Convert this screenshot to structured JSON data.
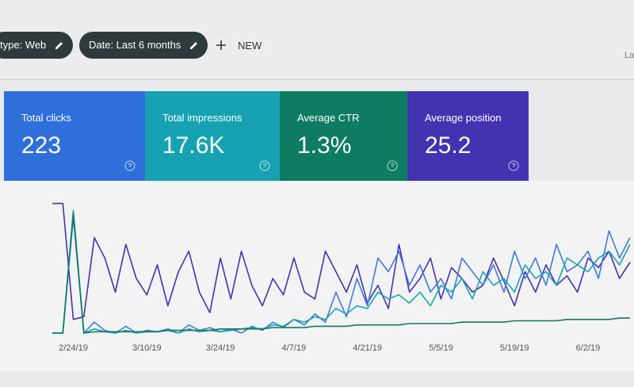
{
  "toolbar": {
    "chips": [
      "type: Web",
      "Date: Last 6 months"
    ],
    "new_button": "NEW",
    "right_text": "La"
  },
  "cards": [
    {
      "label": "Total clicks",
      "value": "223",
      "color": "#2f6fdc"
    },
    {
      "label": "Total impressions",
      "value": "17.6K",
      "color": "#16a2b3"
    },
    {
      "label": "Average CTR",
      "value": "1.3%",
      "color": "#0e7c63"
    },
    {
      "label": "Average position",
      "value": "25.2",
      "color": "#4433b0"
    }
  ],
  "chart_data": {
    "type": "line",
    "categories": [
      null,
      null,
      "2/24/19",
      null,
      null,
      null,
      null,
      null,
      null,
      "3/10/19",
      null,
      null,
      null,
      null,
      null,
      null,
      "3/24/19",
      null,
      null,
      null,
      null,
      null,
      null,
      "4/7/19",
      null,
      null,
      null,
      null,
      null,
      null,
      "4/21/19",
      null,
      null,
      null,
      null,
      null,
      null,
      "5/5/19",
      null,
      null,
      null,
      null,
      null,
      null,
      "5/19/19",
      null,
      null,
      null,
      null,
      null,
      null,
      "6/2/19",
      null,
      null,
      null,
      null
    ],
    "ylim": [
      0,
      100
    ],
    "series": [
      {
        "color": "#4433b0",
        "values": [
          95,
          95,
          10,
          12,
          70,
          55,
          30,
          65,
          40,
          28,
          50,
          20,
          45,
          60,
          30,
          15,
          55,
          25,
          60,
          35,
          20,
          40,
          28,
          55,
          30,
          25,
          60,
          45,
          30,
          50,
          22,
          35,
          18,
          65,
          30,
          40,
          55,
          25,
          48,
          40,
          30,
          35,
          55,
          38,
          20,
          45,
          30,
          50,
          35,
          42,
          30,
          55,
          48,
          60,
          40,
          52
        ]
      },
      {
        "color": "#3d7be0",
        "values": [
          0,
          0,
          85,
          0,
          8,
          2,
          0,
          5,
          0,
          2,
          1,
          3,
          0,
          6,
          2,
          4,
          1,
          3,
          0,
          5,
          2,
          8,
          4,
          10,
          6,
          14,
          8,
          30,
          12,
          40,
          20,
          55,
          45,
          60,
          35,
          50,
          30,
          40,
          25,
          55,
          45,
          35,
          50,
          30,
          60,
          40,
          55,
          35,
          65,
          45,
          50,
          60,
          40,
          75,
          55,
          70
        ]
      },
      {
        "color": "#1aa5b0",
        "values": [
          0,
          0,
          90,
          0,
          3,
          1,
          0,
          2,
          0,
          1,
          1,
          2,
          0,
          3,
          1,
          2,
          1,
          2,
          3,
          4,
          3,
          6,
          5,
          10,
          8,
          12,
          10,
          18,
          14,
          20,
          18,
          30,
          25,
          28,
          22,
          30,
          20,
          35,
          30,
          40,
          25,
          45,
          35,
          40,
          30,
          50,
          40,
          45,
          35,
          55,
          50,
          45,
          55,
          60,
          50,
          65
        ]
      },
      {
        "color": "#0e7c63",
        "values": [
          0,
          0,
          88,
          0,
          1,
          1,
          1,
          1,
          1,
          1,
          1,
          2,
          2,
          2,
          2,
          2,
          3,
          3,
          3,
          3,
          3,
          4,
          4,
          4,
          4,
          5,
          5,
          5,
          5,
          6,
          6,
          6,
          6,
          6,
          7,
          7,
          7,
          7,
          7,
          8,
          8,
          8,
          8,
          8,
          9,
          9,
          9,
          9,
          9,
          10,
          10,
          10,
          10,
          10,
          11,
          11
        ]
      }
    ]
  }
}
